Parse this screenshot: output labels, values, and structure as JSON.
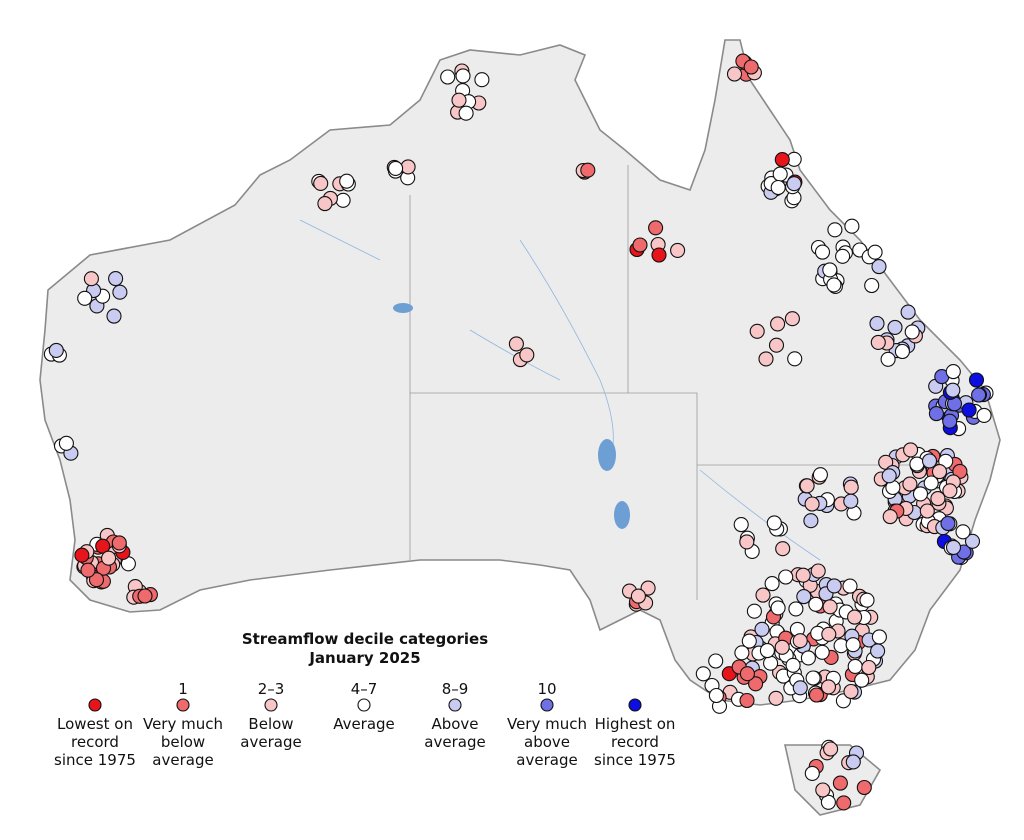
{
  "title": "Streamflow decile categories",
  "subtitle": "January 2025",
  "legend": [
    {
      "color": "#e8141c",
      "label_lines": [
        "Lowest on",
        "record",
        "since 1975"
      ]
    },
    {
      "decile": "1",
      "color": "#ef6a6c",
      "label_lines": [
        "Very much",
        "below",
        "average"
      ]
    },
    {
      "decile": "2–3",
      "color": "#f8c6c6",
      "label_lines": [
        "Below",
        "average"
      ]
    },
    {
      "decile": "4–7",
      "color": "#ffffff",
      "label_lines": [
        "Average"
      ]
    },
    {
      "decile": "8–9",
      "color": "#c9cbf1",
      "label_lines": [
        "Above",
        "average"
      ]
    },
    {
      "decile": "10",
      "color": "#6f70e6",
      "label_lines": [
        "Very much",
        "above",
        "average"
      ]
    },
    {
      "color": "#0d0ee0",
      "label_lines": [
        "Highest on",
        "record",
        "since 1975"
      ]
    }
  ]
}
